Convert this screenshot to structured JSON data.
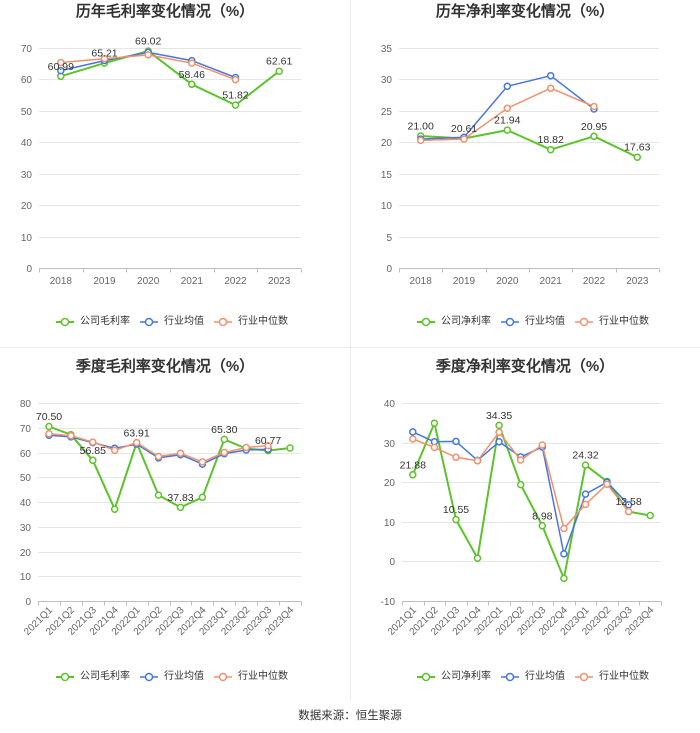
{
  "source": "数据来源：恒生聚源",
  "chart_data": [
    {
      "type": "line",
      "title": "历年毛利率变化情况（%）",
      "categories": [
        "2018",
        "2019",
        "2020",
        "2021",
        "2022",
        "2023"
      ],
      "ylim": [
        0,
        70
      ],
      "yticks": [
        0,
        10,
        20,
        30,
        40,
        50,
        60,
        70
      ],
      "grid": true,
      "legend": "bottom",
      "series": [
        {
          "name": "公司毛利率",
          "color": "#5cc32b",
          "values": [
            60.99,
            65.21,
            69.02,
            58.46,
            51.82,
            62.61
          ],
          "data_labels": [
            "60.99",
            "65.21",
            "69.02",
            "58.46",
            "51.82",
            "62.61"
          ]
        },
        {
          "name": "行业均值",
          "color": "#4677dc",
          "values": [
            62.8,
            66.0,
            68.6,
            66.0,
            60.6,
            null
          ]
        },
        {
          "name": "行业中位数",
          "color": "#f2916e",
          "values": [
            65.4,
            66.6,
            67.8,
            65.2,
            59.9,
            null
          ]
        }
      ]
    },
    {
      "type": "line",
      "title": "历年净利率变化情况（%）",
      "categories": [
        "2018",
        "2019",
        "2020",
        "2021",
        "2022",
        "2023"
      ],
      "ylim": [
        0,
        35
      ],
      "yticks": [
        0,
        5,
        10,
        15,
        20,
        25,
        30,
        35
      ],
      "grid": true,
      "legend": "bottom",
      "series": [
        {
          "name": "公司净利率",
          "color": "#5cc32b",
          "values": [
            21.0,
            20.61,
            21.94,
            18.82,
            20.95,
            17.63
          ],
          "data_labels": [
            "21.00",
            "20.61",
            "21.94",
            "18.82",
            "20.95",
            "17.63"
          ]
        },
        {
          "name": "行业均值",
          "color": "#4677dc",
          "values": [
            20.5,
            20.8,
            28.9,
            30.6,
            25.3,
            null
          ]
        },
        {
          "name": "行业中位数",
          "color": "#f2916e",
          "values": [
            20.3,
            20.5,
            25.4,
            28.6,
            25.7,
            null
          ]
        }
      ]
    },
    {
      "type": "line",
      "title": "季度毛利率变化情况（%）",
      "categories": [
        "2021Q1",
        "2021Q2",
        "2021Q3",
        "2021Q4",
        "2022Q1",
        "2022Q2",
        "2022Q3",
        "2022Q4",
        "2023Q1",
        "2023Q2",
        "2023Q3",
        "2023Q4"
      ],
      "ylim": [
        0,
        80
      ],
      "yticks": [
        0,
        10,
        20,
        30,
        40,
        50,
        60,
        70,
        80
      ],
      "grid": true,
      "legend": "bottom",
      "series": [
        {
          "name": "公司毛利率",
          "color": "#5cc32b",
          "values": [
            70.5,
            67.2,
            56.85,
            37.1,
            63.91,
            42.8,
            37.83,
            41.9,
            65.3,
            61.6,
            60.77,
            61.8
          ],
          "data_labels": [
            "70.50",
            null,
            "56.85",
            null,
            "63.91",
            null,
            "37.83",
            null,
            "65.30",
            null,
            "60.77",
            null
          ]
        },
        {
          "name": "行业均值",
          "color": "#4677dc",
          "values": [
            67.0,
            66.3,
            64.0,
            61.7,
            63.4,
            57.8,
            59.1,
            55.3,
            59.5,
            61.0,
            61.3,
            null
          ]
        },
        {
          "name": "行业中位数",
          "color": "#f2916e",
          "values": [
            67.6,
            66.8,
            64.2,
            60.9,
            64.0,
            58.4,
            59.7,
            56.2,
            60.0,
            62.0,
            62.8,
            null
          ]
        }
      ]
    },
    {
      "type": "line",
      "title": "季度净利率变化情况（%）",
      "categories": [
        "2021Q1",
        "2021Q2",
        "2021Q3",
        "2021Q4",
        "2022Q1",
        "2022Q2",
        "2022Q3",
        "2022Q4",
        "2023Q1",
        "2023Q2",
        "2023Q3",
        "2023Q4"
      ],
      "ylim": [
        -10,
        40
      ],
      "yticks": [
        -10,
        0,
        10,
        20,
        30,
        40
      ],
      "grid": true,
      "legend": "bottom",
      "series": [
        {
          "name": "公司净利率",
          "color": "#5cc32b",
          "values": [
            21.88,
            34.9,
            10.55,
            0.8,
            34.35,
            19.4,
            8.98,
            -4.3,
            24.32,
            20.2,
            12.58,
            11.6
          ],
          "data_labels": [
            "21.88",
            null,
            "10.55",
            null,
            "34.35",
            null,
            "8.98",
            null,
            "24.32",
            null,
            "12.58",
            null
          ]
        },
        {
          "name": "行业均值",
          "color": "#4677dc",
          "values": [
            32.7,
            30.2,
            30.3,
            25.5,
            30.2,
            26.4,
            28.9,
            1.9,
            17.0,
            20.0,
            14.3,
            null
          ]
        },
        {
          "name": "行业中位数",
          "color": "#f2916e",
          "values": [
            30.9,
            28.8,
            26.3,
            25.4,
            32.6,
            25.6,
            29.4,
            8.3,
            14.4,
            19.5,
            12.6,
            null
          ]
        }
      ]
    }
  ]
}
